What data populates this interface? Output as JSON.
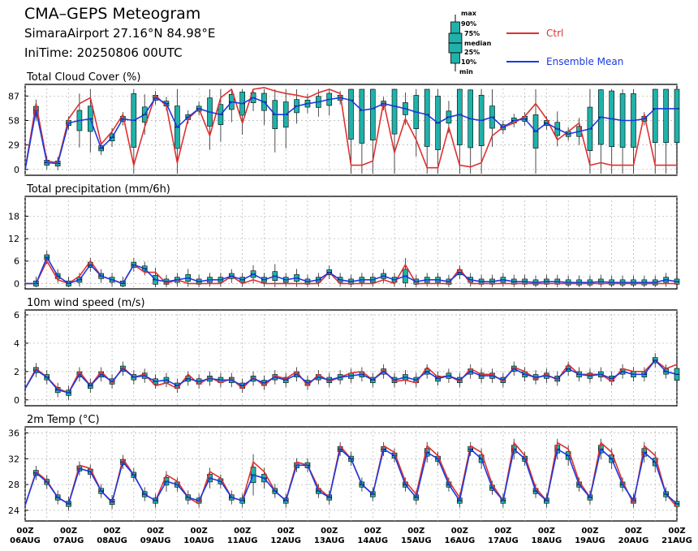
{
  "header": {
    "title": "CMA–GEPS Meteogram",
    "site": "SimaraAirport 27.16°N 84.98°E",
    "init": "IniTime: 20250806 00UTC"
  },
  "legend": {
    "box_labels": [
      "max",
      "90%",
      "75%",
      "median",
      "25%",
      "10%",
      "min"
    ],
    "ctrl": "Ctrl",
    "mean": "Ensemble Mean",
    "ctrl_color": "#e03030",
    "mean_color": "#1a3ae0",
    "box_color": "#20b2aa"
  },
  "colors": {
    "ctrl": "#e03030",
    "mean": "#1a3ae0",
    "box": "#20b2aa",
    "grid": "#b0b0b0"
  },
  "x_ticks": [
    {
      "t": "00Z",
      "d": "06AUG"
    },
    {
      "t": "00Z",
      "d": "07AUG"
    },
    {
      "t": "00Z",
      "d": "08AUG"
    },
    {
      "t": "00Z",
      "d": "09AUG"
    },
    {
      "t": "00Z",
      "d": "10AUG"
    },
    {
      "t": "00Z",
      "d": "11AUG"
    },
    {
      "t": "00Z",
      "d": "12AUG"
    },
    {
      "t": "00Z",
      "d": "13AUG"
    },
    {
      "t": "00Z",
      "d": "14AUG"
    },
    {
      "t": "00Z",
      "d": "15AUG"
    },
    {
      "t": "00Z",
      "d": "16AUG"
    },
    {
      "t": "00Z",
      "d": "17AUG"
    },
    {
      "t": "00Z",
      "d": "18AUG"
    },
    {
      "t": "00Z",
      "d": "19AUG"
    },
    {
      "t": "00Z",
      "d": "20AUG"
    },
    {
      "t": "00Z",
      "d": "21AUG"
    }
  ],
  "chart_data": [
    {
      "type": "line",
      "title": "Total Cloud Cover (%)",
      "x_unit": "forecast hours from 20250806 00UTC",
      "xlim": [
        0,
        360
      ],
      "ylim": [
        -5,
        95
      ],
      "yticks": [
        0,
        29,
        58,
        87
      ],
      "grid": true,
      "series": [
        {
          "name": "Ctrl",
          "x": [
            0,
            6,
            12,
            18,
            24,
            30,
            36,
            42,
            48,
            54,
            60,
            66,
            72,
            78,
            84,
            90,
            96,
            102,
            108,
            114,
            120,
            126,
            132,
            138,
            144,
            150,
            156,
            162,
            168,
            174,
            180,
            186,
            192,
            198,
            204,
            210,
            216,
            222,
            228,
            234,
            240,
            246,
            252,
            258,
            264,
            270,
            276,
            282,
            288,
            294,
            300,
            306,
            312,
            318,
            324,
            330,
            336,
            342,
            348,
            354,
            360
          ],
          "values": [
            0,
            78,
            10,
            8,
            60,
            78,
            85,
            30,
            45,
            65,
            5,
            50,
            88,
            75,
            8,
            60,
            72,
            40,
            85,
            95,
            55,
            95,
            97,
            93,
            90,
            88,
            85,
            91,
            95,
            90,
            5,
            5,
            10,
            80,
            20,
            60,
            35,
            2,
            2,
            50,
            5,
            3,
            8,
            40,
            50,
            55,
            63,
            78,
            60,
            35,
            45,
            55,
            5,
            8,
            5,
            5,
            5,
            65,
            5,
            5,
            5
          ]
        },
        {
          "name": "Ensemble Mean",
          "x": [
            0,
            6,
            12,
            18,
            24,
            30,
            36,
            42,
            48,
            54,
            60,
            66,
            72,
            78,
            84,
            90,
            96,
            102,
            108,
            114,
            120,
            126,
            132,
            138,
            144,
            150,
            156,
            162,
            168,
            174,
            180,
            186,
            192,
            198,
            204,
            210,
            216,
            222,
            228,
            234,
            240,
            246,
            252,
            258,
            264,
            270,
            276,
            282,
            288,
            294,
            300,
            306,
            312,
            318,
            324,
            330,
            336,
            342,
            348,
            354,
            360
          ],
          "values": [
            0,
            70,
            8,
            7,
            55,
            58,
            60,
            25,
            38,
            60,
            58,
            65,
            85,
            78,
            50,
            62,
            72,
            68,
            65,
            80,
            78,
            85,
            80,
            65,
            65,
            75,
            78,
            80,
            83,
            85,
            82,
            70,
            72,
            78,
            75,
            72,
            68,
            65,
            55,
            62,
            65,
            60,
            58,
            62,
            50,
            58,
            60,
            45,
            55,
            48,
            42,
            45,
            48,
            62,
            60,
            58,
            58,
            60,
            72,
            72,
            72
          ]
        }
      ]
    },
    {
      "type": "line",
      "title": "Total precipitation (mm/6h)",
      "x_unit": "forecast hours from 20250806 00UTC",
      "xlim": [
        0,
        360
      ],
      "ylim": [
        -1,
        22
      ],
      "yticks": [
        0,
        6,
        12,
        18
      ],
      "grid": true,
      "series": [
        {
          "name": "Ctrl",
          "x": [
            0,
            6,
            12,
            18,
            24,
            30,
            36,
            42,
            48,
            54,
            60,
            66,
            72,
            78,
            84,
            90,
            96,
            102,
            108,
            114,
            120,
            126,
            132,
            138,
            144,
            150,
            156,
            162,
            168,
            174,
            180,
            186,
            192,
            198,
            204,
            210,
            216,
            222,
            228,
            234,
            240,
            246,
            252,
            258,
            264,
            270,
            276,
            282,
            288,
            294,
            300,
            306,
            312,
            318,
            324,
            330,
            336,
            342,
            348,
            354,
            360
          ],
          "values": [
            0,
            0,
            6,
            1,
            0,
            2,
            6,
            2,
            1,
            0,
            5,
            3,
            3,
            0,
            1,
            0,
            0,
            0,
            0,
            2,
            0,
            1,
            0,
            0,
            0,
            0,
            0,
            0,
            3,
            0,
            0,
            0,
            0,
            1,
            0,
            5,
            0,
            0,
            0,
            0,
            4,
            0,
            0,
            0,
            0,
            0,
            0,
            0,
            0,
            0,
            0,
            0,
            0,
            0,
            0,
            0,
            0,
            0,
            0,
            0,
            0
          ]
        },
        {
          "name": "Ensemble Mean",
          "x": [
            0,
            6,
            12,
            18,
            24,
            30,
            36,
            42,
            48,
            54,
            60,
            66,
            72,
            78,
            84,
            90,
            96,
            102,
            108,
            114,
            120,
            126,
            132,
            138,
            144,
            150,
            156,
            162,
            168,
            174,
            180,
            186,
            192,
            198,
            204,
            210,
            216,
            222,
            228,
            234,
            240,
            246,
            252,
            258,
            264,
            270,
            276,
            282,
            288,
            294,
            300,
            306,
            312,
            318,
            324,
            330,
            336,
            342,
            348,
            354,
            360
          ],
          "values": [
            0,
            0,
            7,
            2,
            0,
            1,
            5,
            2,
            1,
            0,
            5,
            4,
            1,
            0.5,
            1,
            1.5,
            0.5,
            1,
            1,
            2,
            1,
            2.5,
            1,
            2,
            1,
            1.5,
            0.5,
            1,
            3,
            1,
            0.5,
            1,
            1,
            2,
            1,
            2,
            0.5,
            1,
            1,
            0.5,
            3,
            1,
            0.5,
            0.5,
            1,
            0.5,
            0.5,
            0.3,
            0.5,
            0.5,
            0.3,
            0.3,
            0.3,
            0.5,
            0.3,
            0.3,
            0.3,
            0.3,
            0.3,
            1,
            0.5
          ]
        }
      ]
    },
    {
      "type": "line",
      "title": "10m wind speed (m/s)",
      "x_unit": "forecast hours from 20250806 00UTC",
      "xlim": [
        0,
        360
      ],
      "ylim": [
        -0.3,
        6
      ],
      "yticks": [
        0,
        2,
        4,
        6
      ],
      "grid": true,
      "series": [
        {
          "name": "Ctrl",
          "x": [
            0,
            6,
            12,
            18,
            24,
            30,
            36,
            42,
            48,
            54,
            60,
            66,
            72,
            78,
            84,
            90,
            96,
            102,
            108,
            114,
            120,
            126,
            132,
            138,
            144,
            150,
            156,
            162,
            168,
            174,
            180,
            186,
            192,
            198,
            204,
            210,
            216,
            222,
            228,
            234,
            240,
            246,
            252,
            258,
            264,
            270,
            276,
            282,
            288,
            294,
            300,
            306,
            312,
            318,
            324,
            330,
            336,
            342,
            348,
            354,
            360
          ],
          "values": [
            0.8,
            2.2,
            1.6,
            0.8,
            0.5,
            2.0,
            1.0,
            2.0,
            1.2,
            2.3,
            1.6,
            1.8,
            1.0,
            1.2,
            0.8,
            1.8,
            1.1,
            1.6,
            1.2,
            1.5,
            0.8,
            1.6,
            1.0,
            1.7,
            1.5,
            2.0,
            1.0,
            1.8,
            1.3,
            1.6,
            1.9,
            2.0,
            1.4,
            2.1,
            1.3,
            1.4,
            1.2,
            2.3,
            1.6,
            1.7,
            1.3,
            2.2,
            1.8,
            1.8,
            1.3,
            2.3,
            2.0,
            1.5,
            1.8,
            1.4,
            2.5,
            1.8,
            1.8,
            1.8,
            1.3,
            2.2,
            2.0,
            2.0,
            2.8,
            2.2,
            2.5
          ]
        },
        {
          "name": "Ensemble Mean",
          "x": [
            0,
            6,
            12,
            18,
            24,
            30,
            36,
            42,
            48,
            54,
            60,
            66,
            72,
            78,
            84,
            90,
            96,
            102,
            108,
            114,
            120,
            126,
            132,
            138,
            144,
            150,
            156,
            162,
            168,
            174,
            180,
            186,
            192,
            198,
            204,
            210,
            216,
            222,
            228,
            234,
            240,
            246,
            252,
            258,
            264,
            270,
            276,
            282,
            288,
            294,
            300,
            306,
            312,
            318,
            324,
            330,
            336,
            342,
            348,
            354,
            360
          ],
          "values": [
            0.8,
            2.1,
            1.6,
            0.7,
            0.5,
            1.8,
            1.0,
            1.8,
            1.3,
            2.2,
            1.6,
            1.7,
            1.3,
            1.4,
            1.0,
            1.5,
            1.3,
            1.5,
            1.4,
            1.4,
            1.0,
            1.5,
            1.2,
            1.6,
            1.4,
            1.8,
            1.2,
            1.6,
            1.4,
            1.6,
            1.7,
            1.8,
            1.4,
            2.0,
            1.4,
            1.6,
            1.4,
            2.0,
            1.5,
            1.7,
            1.4,
            2.0,
            1.7,
            1.7,
            1.4,
            2.2,
            1.8,
            1.6,
            1.7,
            1.5,
            2.2,
            1.8,
            1.7,
            1.8,
            1.5,
            2.0,
            1.8,
            1.8,
            2.8,
            2.0,
            1.8
          ]
        }
      ]
    },
    {
      "type": "line",
      "title": "2m Temp (°C)",
      "x_unit": "forecast hours from 20250806 00UTC",
      "xlim": [
        0,
        360
      ],
      "ylim": [
        22.6,
        36.2
      ],
      "yticks": [
        24,
        28,
        32,
        36
      ],
      "grid": true,
      "series": [
        {
          "name": "Ctrl",
          "x": [
            0,
            6,
            12,
            18,
            24,
            30,
            36,
            42,
            48,
            54,
            60,
            66,
            72,
            78,
            84,
            90,
            96,
            102,
            108,
            114,
            120,
            126,
            132,
            138,
            144,
            150,
            156,
            162,
            168,
            174,
            180,
            186,
            192,
            198,
            204,
            210,
            216,
            222,
            228,
            234,
            240,
            246,
            252,
            258,
            264,
            270,
            276,
            282,
            288,
            294,
            300,
            306,
            312,
            318,
            324,
            330,
            336,
            342,
            348,
            354,
            360
          ],
          "values": [
            24.8,
            30.0,
            28.6,
            26.0,
            25.0,
            31.0,
            30.5,
            27.0,
            25.2,
            32.0,
            29.5,
            26.5,
            25.5,
            29.5,
            28.5,
            26.0,
            25.0,
            30.0,
            29.0,
            26.0,
            25.5,
            31.5,
            30.0,
            27.0,
            25.5,
            31.5,
            31.0,
            27.5,
            26.0,
            34.0,
            32.0,
            28.0,
            26.5,
            34.0,
            33.0,
            28.5,
            26.5,
            34.0,
            32.5,
            28.5,
            26.0,
            34.0,
            33.0,
            28.0,
            25.5,
            34.5,
            32.5,
            27.5,
            25.5,
            34.5,
            33.5,
            28.5,
            26.0,
            34.5,
            33.0,
            28.5,
            25.0,
            34.0,
            32.5,
            26.5,
            24.5
          ]
        },
        {
          "name": "Ensemble Mean",
          "x": [
            0,
            6,
            12,
            18,
            24,
            30,
            36,
            42,
            48,
            54,
            60,
            66,
            72,
            78,
            84,
            90,
            96,
            102,
            108,
            114,
            120,
            126,
            132,
            138,
            144,
            150,
            156,
            162,
            168,
            174,
            180,
            186,
            192,
            198,
            204,
            210,
            216,
            222,
            228,
            234,
            240,
            246,
            252,
            258,
            264,
            270,
            276,
            282,
            288,
            294,
            300,
            306,
            312,
            318,
            324,
            330,
            336,
            342,
            348,
            354,
            360
          ],
          "values": [
            24.8,
            29.8,
            28.4,
            26.0,
            25.0,
            30.5,
            30.0,
            27.0,
            25.3,
            31.5,
            29.5,
            26.5,
            25.5,
            28.5,
            28.0,
            26.0,
            25.5,
            29.0,
            28.5,
            26.0,
            25.5,
            29.5,
            29.0,
            27.0,
            25.5,
            31.0,
            31.0,
            27.0,
            26.0,
            33.5,
            32.0,
            28.0,
            26.5,
            33.5,
            32.5,
            28.0,
            26.0,
            33.0,
            32.0,
            28.0,
            25.5,
            33.5,
            32.0,
            27.5,
            25.5,
            33.5,
            32.0,
            27.0,
            25.5,
            33.5,
            32.5,
            28.0,
            26.0,
            33.5,
            32.0,
            28.0,
            25.5,
            33.0,
            31.5,
            26.5,
            25.0
          ]
        }
      ]
    }
  ]
}
